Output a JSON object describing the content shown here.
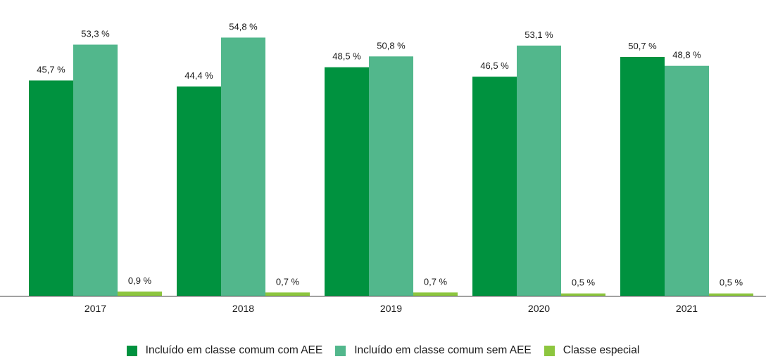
{
  "chart_data": {
    "type": "bar",
    "title": "",
    "xlabel": "",
    "ylabel": "",
    "ylim": [
      0,
      58
    ],
    "grid": false,
    "legend_position": "bottom",
    "categories": [
      "2017",
      "2018",
      "2019",
      "2020",
      "2021"
    ],
    "series": [
      {
        "name": "Incluído em classe comum com AEE",
        "color": "#00923f",
        "values": [
          45.7,
          44.4,
          48.5,
          46.5,
          50.7
        ],
        "labels": [
          "45,7 %",
          "44,4 %",
          "48,5 %",
          "46,5 %",
          "50,7 %"
        ]
      },
      {
        "name": "Incluído em classe comum sem AEE",
        "color": "#52b78c",
        "values": [
          53.3,
          54.8,
          50.8,
          53.1,
          48.8
        ],
        "labels": [
          "53,3 %",
          "54,8 %",
          "50,8 %",
          "53,1 %",
          "48,8 %"
        ]
      },
      {
        "name": "Classe especial",
        "color": "#8dc63f",
        "values": [
          0.9,
          0.7,
          0.7,
          0.5,
          0.5
        ],
        "labels": [
          "0,9 %",
          "0,7 %",
          "0,7 %",
          "0,5 %",
          "0,5 %"
        ]
      }
    ]
  }
}
